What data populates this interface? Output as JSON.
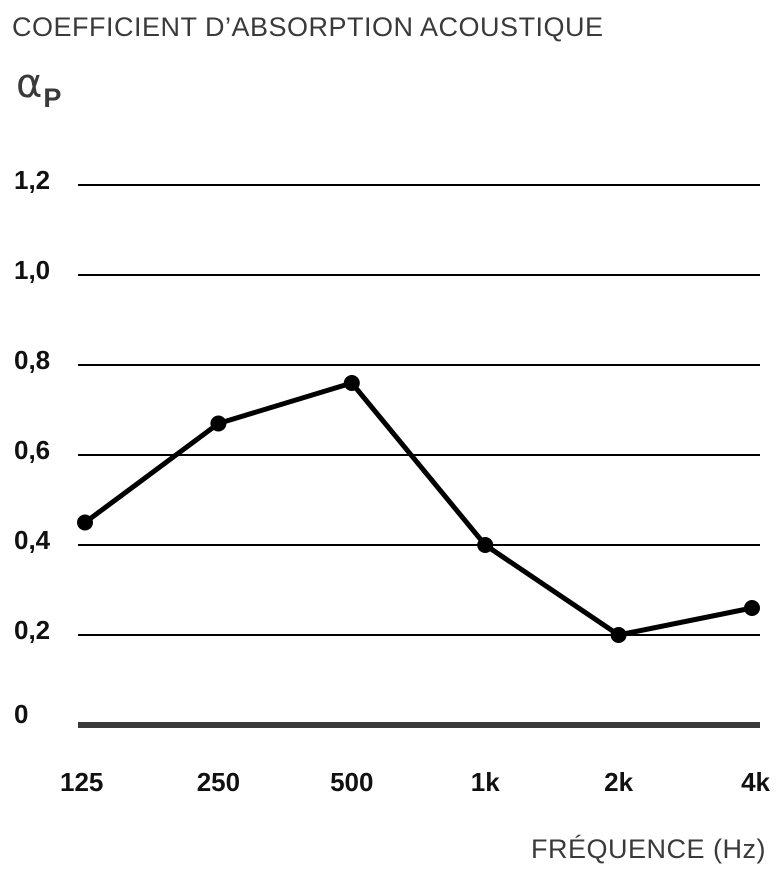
{
  "chart_data": {
    "type": "line",
    "title": "COEFFICIENT D’ABSORPTION ACOUSTIQUE",
    "ylabel_symbol": "α",
    "ylabel_subscript": "P",
    "xlabel": "FRÉQUENCE (Hz)",
    "categories": [
      "125",
      "250",
      "500",
      "1k",
      "2k",
      "4k"
    ],
    "values": [
      0.45,
      0.67,
      0.76,
      0.4,
      0.2,
      0.26
    ],
    "yticks": [
      {
        "value": 0,
        "label": "0"
      },
      {
        "value": 0.2,
        "label": "0,2"
      },
      {
        "value": 0.4,
        "label": "0,4"
      },
      {
        "value": 0.6,
        "label": "0,6"
      },
      {
        "value": 0.8,
        "label": "0,8"
      },
      {
        "value": 1.0,
        "label": "1,0"
      },
      {
        "value": 1.2,
        "label": "1,2"
      }
    ],
    "ylim": [
      0,
      1.2
    ],
    "grid": true,
    "line_color": "#000000",
    "grid_color": "#000000",
    "baseline_color": "#3a3a3a"
  }
}
